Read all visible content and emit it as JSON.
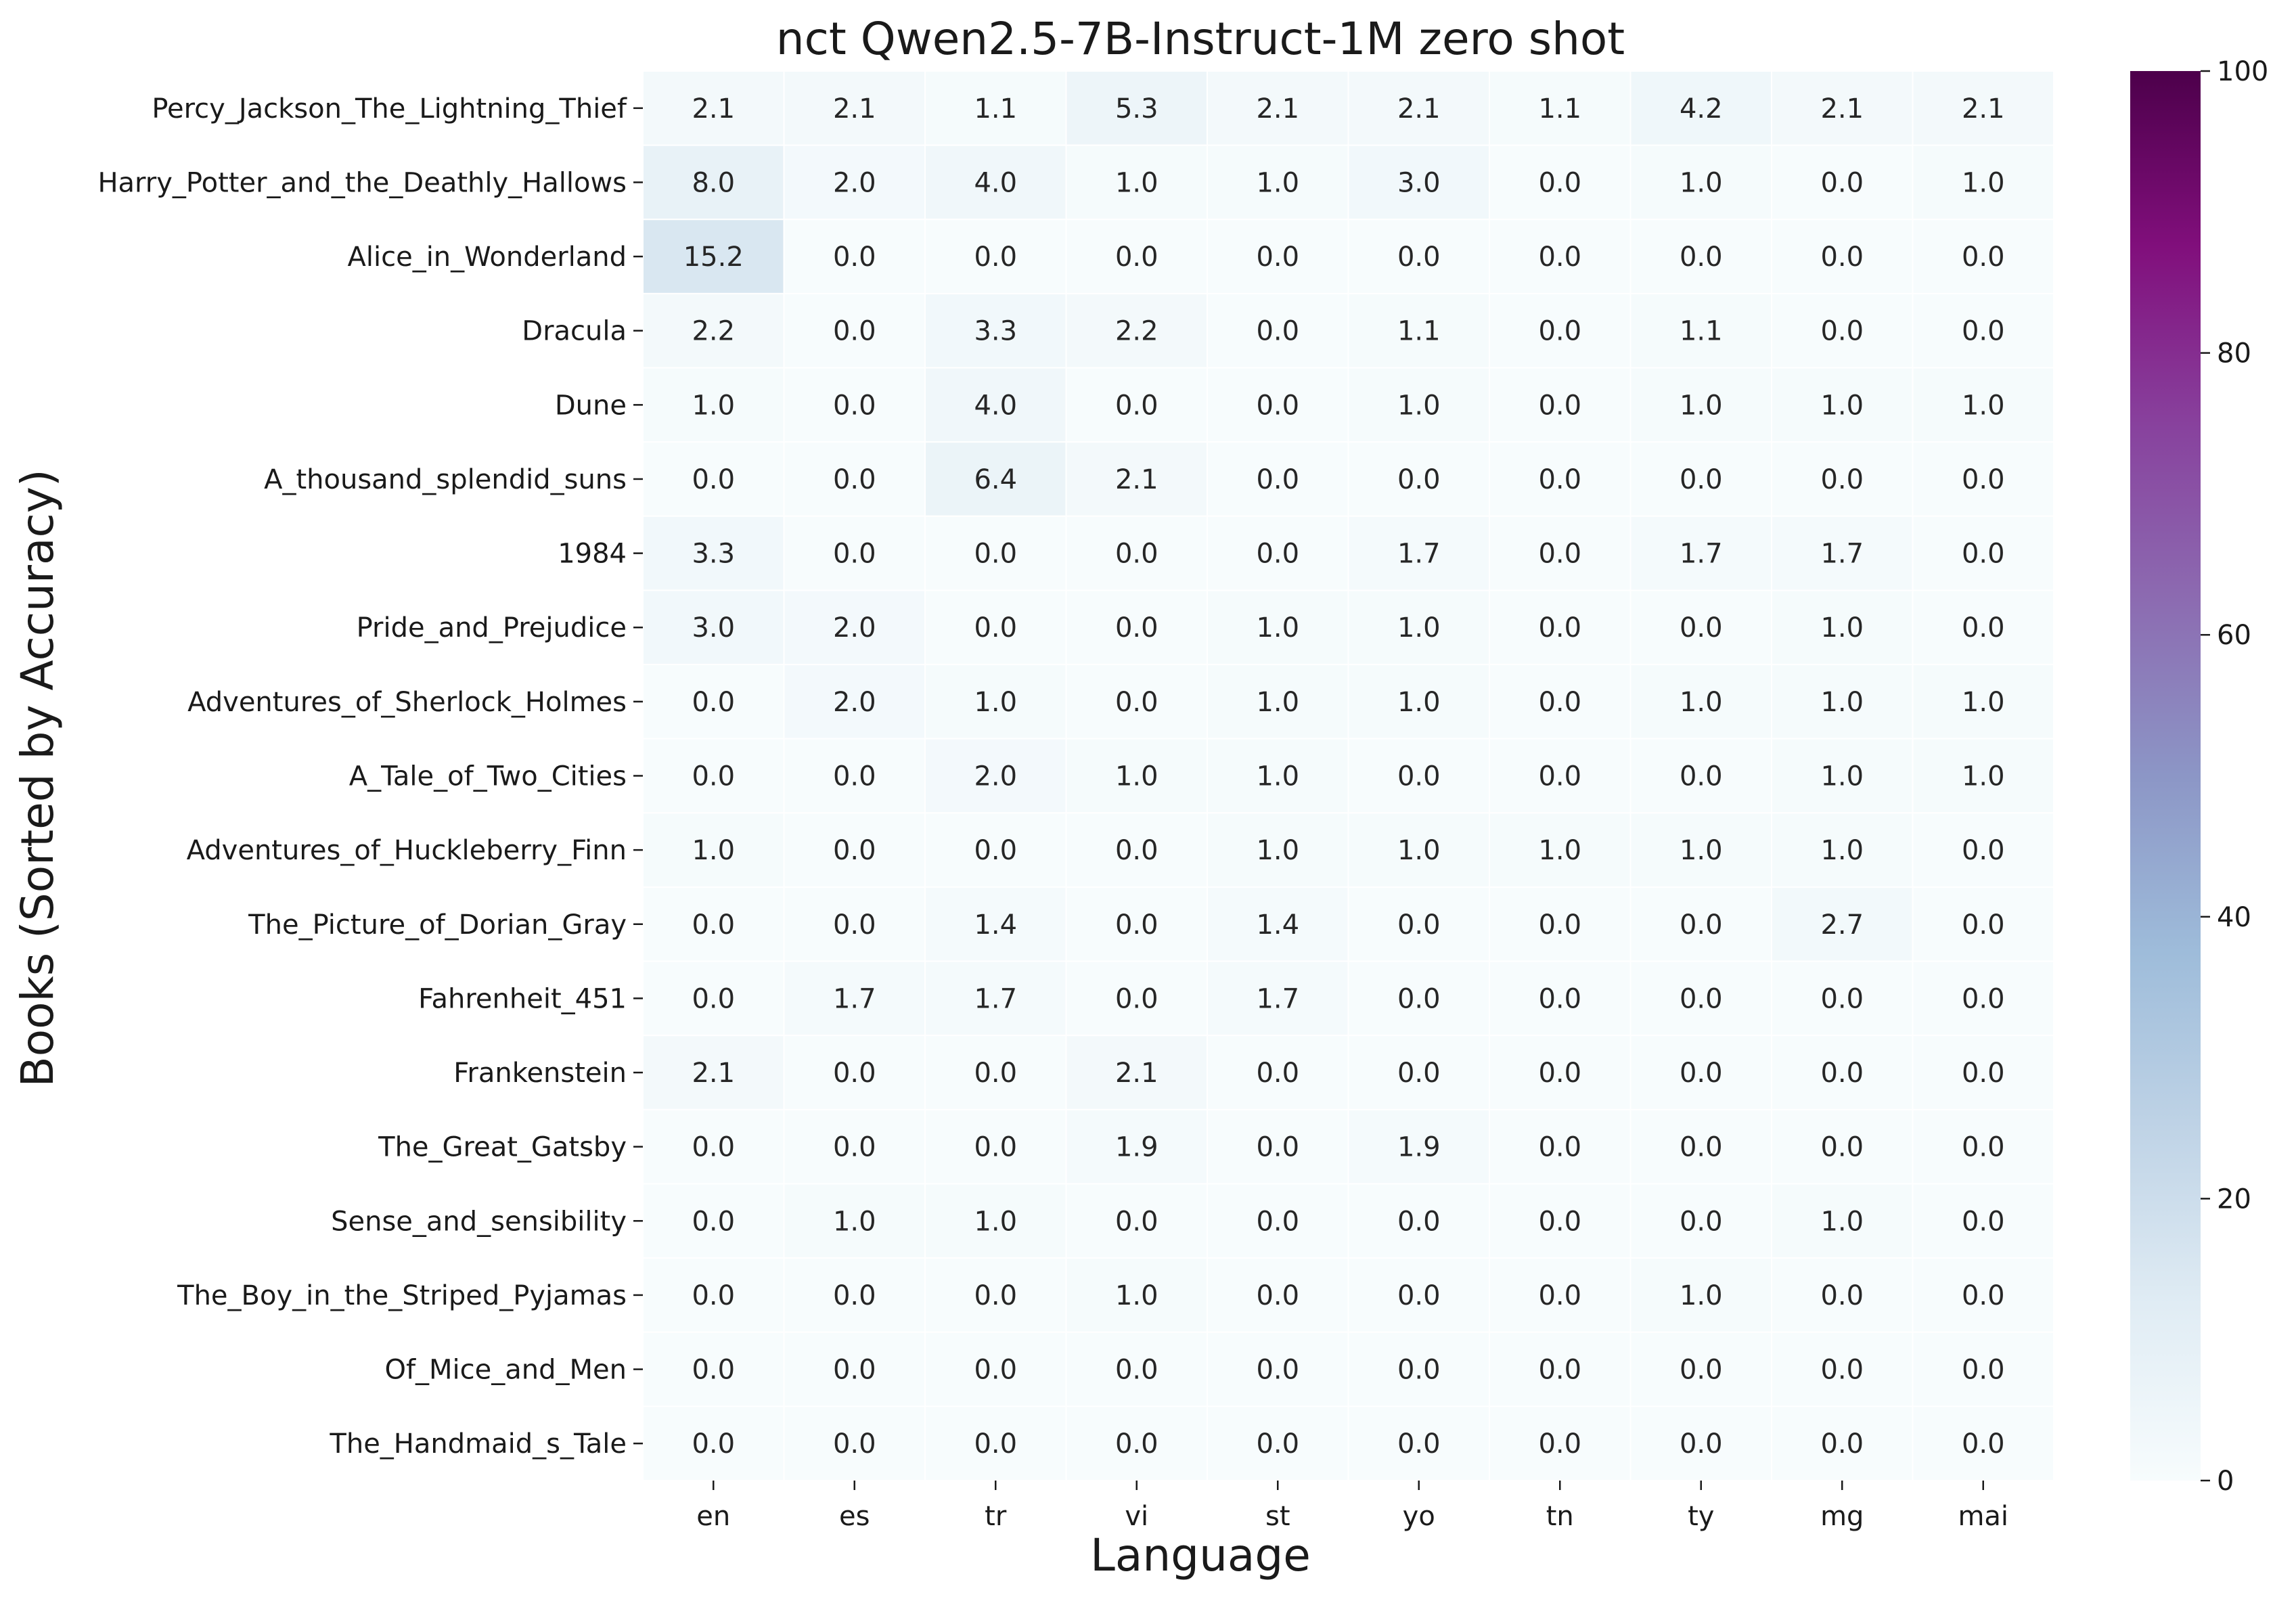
{
  "chart_data": {
    "type": "heatmap",
    "title": "nct Qwen2.5-7B-Instruct-1M zero shot",
    "xlabel": "Language",
    "ylabel": "Books (Sorted by Accuracy)",
    "x_categories": [
      "en",
      "es",
      "tr",
      "vi",
      "st",
      "yo",
      "tn",
      "ty",
      "mg",
      "mai"
    ],
    "y_categories": [
      "Percy_Jackson_The_Lightning_Thief",
      "Harry_Potter_and_the_Deathly_Hallows",
      "Alice_in_Wonderland",
      "Dracula",
      "Dune",
      "A_thousand_splendid_suns",
      "1984",
      "Pride_and_Prejudice",
      "Adventures_of_Sherlock_Holmes",
      "A_Tale_of_Two_Cities",
      "Adventures_of_Huckleberry_Finn",
      "The_Picture_of_Dorian_Gray",
      "Fahrenheit_451",
      "Frankenstein",
      "The_Great_Gatsby",
      "Sense_and_sensibility",
      "The_Boy_in_the_Striped_Pyjamas",
      "Of_Mice_and_Men",
      "The_Handmaid_s_Tale"
    ],
    "values": [
      [
        2.1,
        2.1,
        1.1,
        5.3,
        2.1,
        2.1,
        1.1,
        4.2,
        2.1,
        2.1
      ],
      [
        8.0,
        2.0,
        4.0,
        1.0,
        1.0,
        3.0,
        0.0,
        1.0,
        0.0,
        1.0
      ],
      [
        15.2,
        0.0,
        0.0,
        0.0,
        0.0,
        0.0,
        0.0,
        0.0,
        0.0,
        0.0
      ],
      [
        2.2,
        0.0,
        3.3,
        2.2,
        0.0,
        1.1,
        0.0,
        1.1,
        0.0,
        0.0
      ],
      [
        1.0,
        0.0,
        4.0,
        0.0,
        0.0,
        1.0,
        0.0,
        1.0,
        1.0,
        1.0
      ],
      [
        0.0,
        0.0,
        6.4,
        2.1,
        0.0,
        0.0,
        0.0,
        0.0,
        0.0,
        0.0
      ],
      [
        3.3,
        0.0,
        0.0,
        0.0,
        0.0,
        1.7,
        0.0,
        1.7,
        1.7,
        0.0
      ],
      [
        3.0,
        2.0,
        0.0,
        0.0,
        1.0,
        1.0,
        0.0,
        0.0,
        1.0,
        0.0
      ],
      [
        0.0,
        2.0,
        1.0,
        0.0,
        1.0,
        1.0,
        0.0,
        1.0,
        1.0,
        1.0
      ],
      [
        0.0,
        0.0,
        2.0,
        1.0,
        1.0,
        0.0,
        0.0,
        0.0,
        1.0,
        1.0
      ],
      [
        1.0,
        0.0,
        0.0,
        0.0,
        1.0,
        1.0,
        1.0,
        1.0,
        1.0,
        0.0
      ],
      [
        0.0,
        0.0,
        1.4,
        0.0,
        1.4,
        0.0,
        0.0,
        0.0,
        2.7,
        0.0
      ],
      [
        0.0,
        1.7,
        1.7,
        0.0,
        1.7,
        0.0,
        0.0,
        0.0,
        0.0,
        0.0
      ],
      [
        2.1,
        0.0,
        0.0,
        2.1,
        0.0,
        0.0,
        0.0,
        0.0,
        0.0,
        0.0
      ],
      [
        0.0,
        0.0,
        0.0,
        1.9,
        0.0,
        1.9,
        0.0,
        0.0,
        0.0,
        0.0
      ],
      [
        0.0,
        1.0,
        1.0,
        0.0,
        0.0,
        0.0,
        0.0,
        0.0,
        1.0,
        0.0
      ],
      [
        0.0,
        0.0,
        0.0,
        1.0,
        0.0,
        0.0,
        0.0,
        1.0,
        0.0,
        0.0
      ],
      [
        0.0,
        0.0,
        0.0,
        0.0,
        0.0,
        0.0,
        0.0,
        0.0,
        0.0,
        0.0
      ],
      [
        0.0,
        0.0,
        0.0,
        0.0,
        0.0,
        0.0,
        0.0,
        0.0,
        0.0,
        0.0
      ]
    ],
    "value_format": "0.0",
    "colorbar": {
      "range": [
        0,
        100
      ],
      "ticks": [
        0,
        20,
        40,
        60,
        80,
        100
      ],
      "colormap": "BuPu",
      "color_stops": [
        {
          "value": 0,
          "color": "#f7fcfd"
        },
        {
          "value": 12.5,
          "color": "#e0ecf4"
        },
        {
          "value": 25,
          "color": "#bfd3e6"
        },
        {
          "value": 37.5,
          "color": "#9ebcda"
        },
        {
          "value": 50,
          "color": "#8c96c6"
        },
        {
          "value": 62.5,
          "color": "#8c6bb1"
        },
        {
          "value": 75,
          "color": "#88419d"
        },
        {
          "value": 87.5,
          "color": "#810f7c"
        },
        {
          "value": 100,
          "color": "#4d004b"
        }
      ]
    },
    "cell_border_color": "#ffffff",
    "grid": false,
    "legend": "colorbar-right"
  }
}
